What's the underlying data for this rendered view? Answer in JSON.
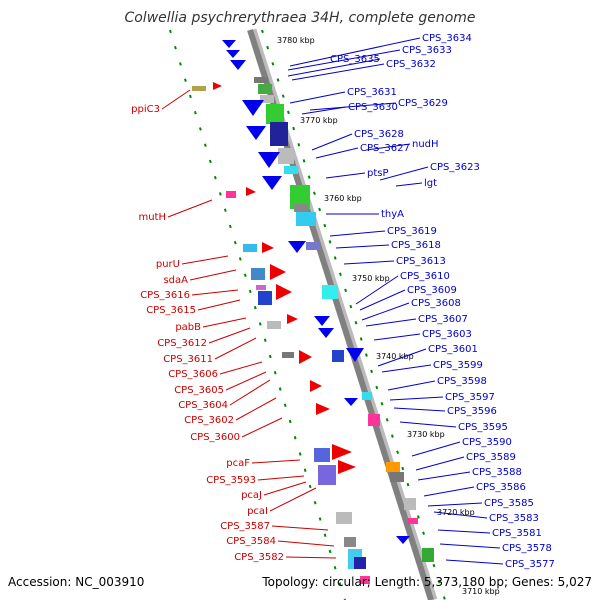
{
  "title": "Colwellia psychrerythraea 34H, complete genome",
  "accession": "Accession: NC_003910",
  "summary": "Topology: circular; Length: 5,373,180 bp; Genes: 5,027",
  "colors": {
    "forward_label": "#0000cc",
    "reverse_label": "#cc0000",
    "backbone": "#808080",
    "ticks": "#008800"
  },
  "kbp_marks": [
    "3780 kbp",
    "3770 kbp",
    "3760 kbp",
    "3750 kbp",
    "3740 kbp",
    "3730 kbp",
    "3720 kbp",
    "3710 kbp"
  ],
  "right_labels": [
    "CPS_3634",
    "CPS_3633",
    "CPS_3635",
    "CPS_3632",
    "CPS_3631",
    "CPS_3629",
    "CPS_3630",
    "CPS_3628",
    "nudH",
    "CPS_3627",
    "CPS_3623",
    "ptsP",
    "lgt",
    "thyA",
    "CPS_3619",
    "CPS_3618",
    "CPS_3613",
    "CPS_3610",
    "CPS_3609",
    "CPS_3608",
    "CPS_3607",
    "CPS_3603",
    "CPS_3601",
    "CPS_3599",
    "CPS_3598",
    "CPS_3597",
    "CPS_3596",
    "CPS_3595",
    "CPS_3590",
    "CPS_3589",
    "CPS_3588",
    "CPS_3586",
    "CPS_3585",
    "CPS_3583",
    "CPS_3581",
    "CPS_3578",
    "CPS_3577"
  ],
  "left_labels": [
    "ppiC3",
    "mutH",
    "purU",
    "sdaA",
    "CPS_3616",
    "CPS_3615",
    "pabB",
    "CPS_3612",
    "CPS_3611",
    "CPS_3606",
    "CPS_3605",
    "CPS_3604",
    "CPS_3602",
    "CPS_3600",
    "pcaF",
    "CPS_3593",
    "pcaJ",
    "pcaI",
    "CPS_3587",
    "CPS_3584",
    "CPS_3582"
  ]
}
